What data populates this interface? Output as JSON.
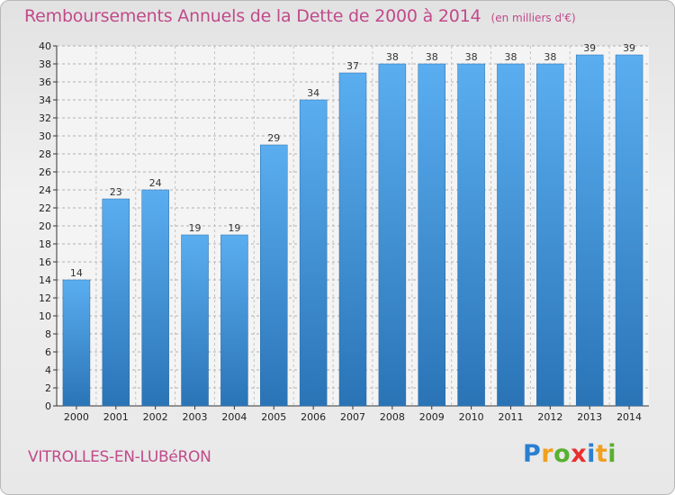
{
  "chart_data": {
    "type": "bar",
    "title": "Remboursements Annuels de la Dette de 2000 à 2014",
    "subtitle": "(en milliers d'€)",
    "categories": [
      "2000",
      "2001",
      "2002",
      "2003",
      "2004",
      "2005",
      "2006",
      "2007",
      "2008",
      "2009",
      "2010",
      "2011",
      "2012",
      "2013",
      "2014"
    ],
    "values": [
      14,
      23,
      24,
      19,
      19,
      29,
      34,
      37,
      38,
      38,
      38,
      38,
      38,
      39,
      39
    ],
    "xlabel": "",
    "ylabel": "",
    "ylim": [
      0,
      40
    ],
    "ytick_step": 2,
    "grid": "horizontal dashed",
    "bar_color": "#3f95d8",
    "bar_color_dark": "#2f7cc0"
  },
  "footer": {
    "commune": "VITROLLES-EN-LUBéRON"
  },
  "logo": {
    "text": "Proxiti",
    "letters": [
      {
        "char": "P",
        "color": "#2b7fd0"
      },
      {
        "char": "r",
        "color": "#f0a020"
      },
      {
        "char": "o",
        "color": "#58b030"
      },
      {
        "char": "x",
        "color": "#e83030"
      },
      {
        "char": "i",
        "color": "#2b7fd0"
      },
      {
        "char": "t",
        "color": "#f0a020"
      },
      {
        "char": "i",
        "color": "#58b030"
      }
    ]
  }
}
